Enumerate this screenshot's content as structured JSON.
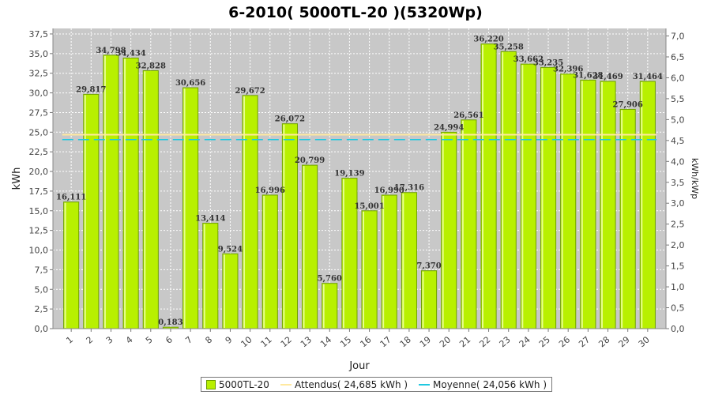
{
  "chart_data": {
    "type": "bar",
    "title": "6-2010( 5000TL-20 )(5320Wp)",
    "xlabel": "Jour",
    "ylabel": "kWh",
    "ylabel_right": "kWh/kWp",
    "ylim": [
      0,
      38.2
    ],
    "ylim_right": [
      0,
      7.18
    ],
    "yticks": [
      "0,0",
      "2,5",
      "5,0",
      "7,5",
      "10,0",
      "12,5",
      "15,0",
      "17,5",
      "20,0",
      "22,5",
      "25,0",
      "27,5",
      "30,0",
      "32,5",
      "35,0",
      "37,5"
    ],
    "yticks_right": [
      "0,0",
      "0,5",
      "1,0",
      "1,5",
      "2,0",
      "2,5",
      "3,0",
      "3,5",
      "4,0",
      "4,5",
      "5,0",
      "5,5",
      "6,0",
      "6,5",
      "7,0"
    ],
    "categories": [
      "1",
      "2",
      "3",
      "4",
      "5",
      "6",
      "7",
      "8",
      "9",
      "10",
      "11",
      "12",
      "13",
      "14",
      "15",
      "16",
      "17",
      "18",
      "19",
      "20",
      "21",
      "22",
      "23",
      "24",
      "25",
      "26",
      "27",
      "28",
      "29",
      "30"
    ],
    "series": [
      {
        "name": "5000TL-20",
        "values": [
          16.111,
          29.817,
          34.798,
          34.434,
          32.828,
          0.183,
          30.656,
          13.414,
          9.524,
          29.672,
          16.996,
          26.072,
          20.799,
          5.76,
          19.139,
          15.001,
          16.99,
          17.316,
          7.37,
          24.994,
          26.561,
          36.22,
          35.258,
          33.662,
          33.235,
          32.396,
          31.628,
          31.469,
          27.906,
          31.464
        ],
        "labels": [
          "16,111",
          "29,817",
          "34,798",
          "34,434",
          "32,828",
          "0,183",
          "30,656",
          "13,414",
          "9,524",
          "29,672",
          "16,996",
          "26,072",
          "20,799",
          "5,760",
          "19,139",
          "15,001",
          "16,990",
          "17,316",
          "7,370",
          "24,994",
          "26,561",
          "36,220",
          "35,258",
          "33,662",
          "33,235",
          "32,396",
          "31,628",
          "31,469",
          "27,906",
          "31,464"
        ]
      }
    ],
    "reference_lines": [
      {
        "name": "Attendus",
        "value": 24.685
      },
      {
        "name": "Moyenne",
        "value": 24.056
      }
    ],
    "grid": true,
    "legend_position": "bottom-center"
  },
  "legend": {
    "items": [
      {
        "text": "5000TL-20"
      },
      {
        "text": "Attendus( 24,685 kWh )"
      },
      {
        "text": "Moyenne( 24,056 kWh )"
      }
    ]
  },
  "colors": {
    "bar_fill": "#b8f000",
    "bar_stroke": "#6fa000",
    "plot_background": "#c8c8c8",
    "attendus_line": "#ffe9a0",
    "moyenne_line": "#20c8e0"
  }
}
